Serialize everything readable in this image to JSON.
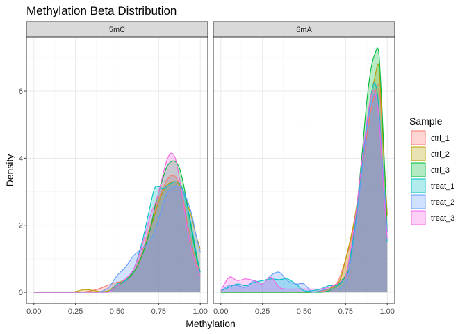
{
  "chart_data": {
    "type": "area",
    "title": "Methylation Beta Distribution",
    "xlabel": "Methylation",
    "ylabel": "Density",
    "xlim": [
      0,
      1
    ],
    "ylim": [
      -0.33,
      7.62
    ],
    "x_ticks": [
      "0.00",
      "0.25",
      "0.50",
      "0.75",
      "1.00"
    ],
    "x_tick_values": [
      0,
      0.25,
      0.5,
      0.75,
      1
    ],
    "y_ticks": [
      "0",
      "2",
      "4",
      "6"
    ],
    "y_tick_values": [
      0,
      2,
      4,
      6
    ],
    "grid": true,
    "legend": {
      "title": "Sample",
      "placement": "right"
    },
    "x": [
      0,
      0.05,
      0.1,
      0.15,
      0.2,
      0.25,
      0.3,
      0.35,
      0.4,
      0.45,
      0.5,
      0.55,
      0.6,
      0.65,
      0.7,
      0.725,
      0.75,
      0.775,
      0.8,
      0.825,
      0.85,
      0.875,
      0.9,
      0.925,
      0.95,
      0.975,
      1.0
    ],
    "facets": [
      {
        "label": "5mC",
        "series": [
          {
            "name": "ctrl_1",
            "color": "#F8766D",
            "values": [
              0,
              0,
              0,
              0,
              0,
              0,
              0.01,
              0.05,
              0.12,
              0.22,
              0.3,
              0.35,
              0.6,
              1.2,
              2.0,
              2.4,
              2.8,
              3.1,
              3.35,
              3.48,
              3.45,
              3.2,
              2.7,
              2.0,
              1.4,
              0.9,
              0.6
            ]
          },
          {
            "name": "ctrl_2",
            "color": "#B79F00",
            "values": [
              0,
              0,
              0,
              0,
              0,
              0.02,
              0.08,
              0.06,
              0.02,
              0.05,
              0.25,
              0.4,
              0.6,
              1.1,
              1.9,
              2.3,
              2.7,
              3.0,
              3.2,
              3.28,
              3.3,
              3.2,
              3.0,
              2.6,
              2.2,
              1.7,
              1.3
            ]
          },
          {
            "name": "ctrl_3",
            "color": "#00BA38",
            "values": [
              0,
              0,
              0,
              0,
              0,
              0,
              0,
              0,
              0,
              0,
              0.2,
              0.35,
              0.6,
              1.1,
              1.9,
              2.5,
              3.0,
              3.4,
              3.75,
              3.9,
              3.9,
              3.7,
              3.2,
              2.5,
              1.8,
              1.1,
              0.6
            ]
          },
          {
            "name": "treat_1",
            "color": "#00BFC4",
            "values": [
              0,
              0,
              0,
              0,
              0,
              0,
              0,
              0,
              0,
              0,
              0.25,
              0.35,
              0.7,
              1.5,
              2.6,
              3.1,
              3.15,
              3.1,
              3.15,
              3.25,
              3.3,
              3.25,
              3.0,
              2.5,
              1.9,
              1.2,
              0.6
            ]
          },
          {
            "name": "treat_2",
            "color": "#619CFF",
            "values": [
              0,
              0,
              0,
              0,
              0,
              0,
              0,
              0,
              0.02,
              0.15,
              0.5,
              0.75,
              1.1,
              1.3,
              1.55,
              1.8,
              2.2,
              2.6,
              2.95,
              3.1,
              3.15,
              3.15,
              3.0,
              2.7,
              2.3,
              1.7,
              1.2
            ]
          },
          {
            "name": "treat_3",
            "color": "#F564E3",
            "values": [
              0,
              0,
              0,
              0,
              0,
              0,
              0,
              0,
              0,
              0,
              0.2,
              0.4,
              0.7,
              1.4,
              2.3,
              2.6,
              3.0,
              3.5,
              3.95,
              4.15,
              4.0,
              3.4,
              2.6,
              1.8,
              1.2,
              0.8,
              0.5
            ]
          }
        ]
      },
      {
        "label": "6mA",
        "series": [
          {
            "name": "ctrl_1",
            "color": "#F8766D",
            "values": [
              0,
              0,
              0,
              0,
              0,
              0,
              0,
              0,
              0,
              0,
              0,
              0,
              0.02,
              0.1,
              0.3,
              0.6,
              1.0,
              1.4,
              2.0,
              2.8,
              3.7,
              4.6,
              5.4,
              5.9,
              6.15,
              4.5,
              2.3
            ]
          },
          {
            "name": "ctrl_2",
            "color": "#B79F00",
            "values": [
              0,
              0,
              0,
              0,
              0,
              0,
              0,
              0,
              0,
              0,
              0,
              0,
              0.05,
              0.1,
              0.25,
              0.5,
              1.0,
              1.5,
              2.1,
              2.9,
              3.9,
              4.9,
              5.8,
              6.4,
              6.7,
              4.5,
              2.3
            ]
          },
          {
            "name": "ctrl_3",
            "color": "#00BA38",
            "values": [
              0,
              0,
              0,
              0,
              0,
              0,
              0,
              0,
              0,
              0,
              0,
              0,
              0,
              0.05,
              0.2,
              0.35,
              0.5,
              0.8,
              1.8,
              2.9,
              4.2,
              5.6,
              6.6,
              7.1,
              7.1,
              4.8,
              1.8
            ]
          },
          {
            "name": "treat_1",
            "color": "#00BFC4",
            "values": [
              0.05,
              0.15,
              0.25,
              0.2,
              0.3,
              0.35,
              0.4,
              0.38,
              0.4,
              0.25,
              0.05,
              0.05,
              0.1,
              0.2,
              0.2,
              0.3,
              0.5,
              1.0,
              1.7,
              2.7,
              3.8,
              4.9,
              5.8,
              6.25,
              5.5,
              3.5,
              1.5
            ]
          },
          {
            "name": "treat_2",
            "color": "#619CFF",
            "values": [
              0.05,
              0.2,
              0.2,
              0.15,
              0.35,
              0.25,
              0.5,
              0.6,
              0.35,
              0.25,
              0.25,
              0.0,
              0.05,
              0.1,
              0.1,
              0.15,
              0.3,
              0.8,
              1.6,
              2.6,
              3.7,
              4.8,
              5.6,
              5.9,
              5.3,
              3.6,
              1.8
            ]
          },
          {
            "name": "treat_3",
            "color": "#F564E3",
            "values": [
              0.05,
              0.45,
              0.35,
              0.4,
              0.35,
              0.25,
              0.45,
              0.15,
              0.1,
              0.1,
              0.1,
              0.1,
              0.1,
              0.15,
              0.25,
              0.35,
              0.45,
              1.1,
              1.9,
              2.9,
              4.0,
              5.0,
              5.8,
              6.0,
              5.2,
              3.3,
              1.6
            ]
          }
        ]
      }
    ]
  }
}
